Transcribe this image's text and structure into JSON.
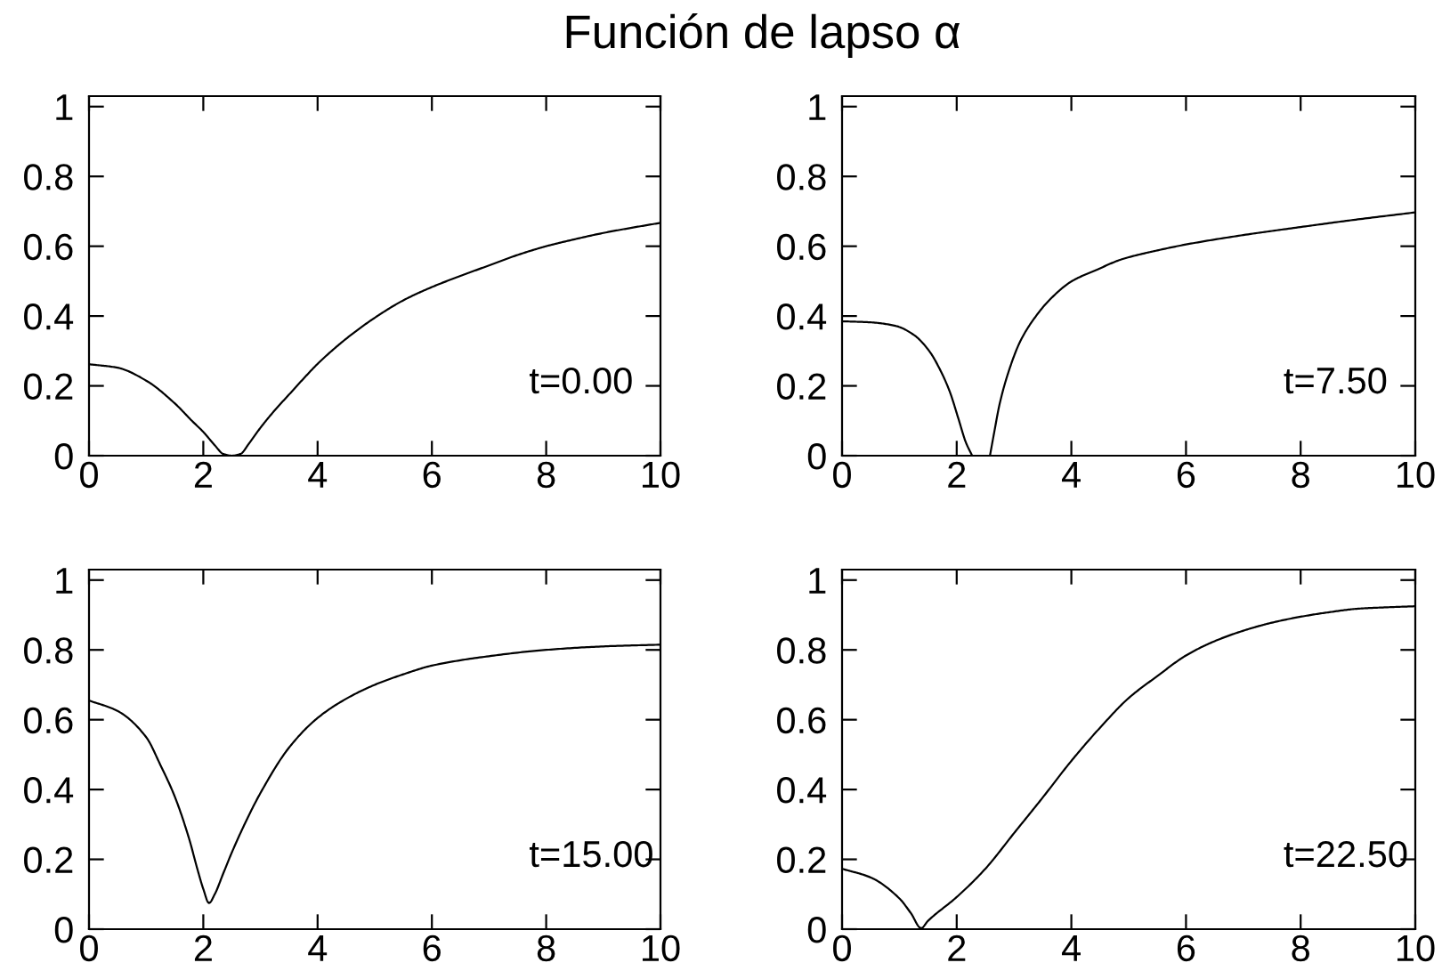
{
  "chart_data": [
    {
      "type": "line",
      "title": "Función de lapso α",
      "color": "#000000",
      "xlim": [
        0,
        10
      ],
      "ylim": [
        0,
        1.03
      ],
      "xticks": [
        0,
        2,
        4,
        6,
        8,
        10
      ],
      "yticks": [
        0,
        0.2,
        0.4,
        0.6,
        0.8,
        1
      ],
      "annotations": [
        "t=0.00"
      ],
      "x": [
        0,
        0.5,
        1,
        1.5,
        1.8,
        2,
        2.2,
        2.35,
        2.5,
        2.65,
        2.8,
        3,
        3.25,
        3.5,
        3.75,
        4,
        4.5,
        5,
        5.5,
        6,
        6.5,
        7,
        7.5,
        8,
        8.5,
        9,
        9.5,
        10
      ],
      "values": [
        0.262,
        0.252,
        0.215,
        0.15,
        0.1,
        0.068,
        0.03,
        0.005,
        0.0,
        0.005,
        0.035,
        0.08,
        0.13,
        0.175,
        0.22,
        0.263,
        0.335,
        0.395,
        0.445,
        0.483,
        0.515,
        0.545,
        0.575,
        0.6,
        0.62,
        0.638,
        0.653,
        0.667
      ]
    },
    {
      "type": "line",
      "color": "#000000",
      "xlim": [
        0,
        10
      ],
      "ylim": [
        0,
        1.03
      ],
      "xticks": [
        0,
        2,
        4,
        6,
        8,
        10
      ],
      "yticks": [
        0,
        0.2,
        0.4,
        0.6,
        0.8,
        1
      ],
      "annotations": [
        "t=7.50"
      ],
      "x": [
        0,
        0.5,
        0.95,
        1.26,
        1.52,
        1.72,
        1.88,
        2.03,
        2.16,
        2.27,
        2.4,
        2.58,
        2.65,
        2.75,
        2.91,
        3.11,
        3.37,
        3.63,
        4.0,
        4.45,
        4.87,
        5.5,
        6,
        7,
        8,
        9,
        10
      ],
      "values": [
        0.385,
        0.382,
        0.371,
        0.345,
        0.3,
        0.243,
        0.183,
        0.106,
        0.038,
        0.0,
        null,
        0.0,
        0.063,
        0.149,
        0.243,
        0.328,
        0.397,
        0.448,
        0.499,
        0.533,
        0.562,
        0.588,
        0.605,
        0.632,
        0.655,
        0.677,
        0.697
      ]
    },
    {
      "type": "line",
      "color": "#000000",
      "xlim": [
        0,
        10
      ],
      "ylim": [
        0,
        1.03
      ],
      "xticks": [
        0,
        2,
        4,
        6,
        8,
        10
      ],
      "yticks": [
        0,
        0.2,
        0.4,
        0.6,
        0.8,
        1
      ],
      "annotations": [
        "t=15.00"
      ],
      "x": [
        0,
        0.5,
        1,
        1.25,
        1.5,
        1.75,
        1.9,
        2,
        2.1,
        2.2,
        2.35,
        2.5,
        2.75,
        3,
        3.5,
        4,
        4.5,
        5,
        5.5,
        6,
        7,
        8,
        9,
        10
      ],
      "values": [
        0.655,
        0.625,
        0.55,
        0.47,
        0.38,
        0.26,
        0.17,
        0.115,
        0.075,
        0.1,
        0.16,
        0.22,
        0.31,
        0.39,
        0.52,
        0.605,
        0.66,
        0.7,
        0.73,
        0.755,
        0.782,
        0.8,
        0.81,
        0.815
      ]
    },
    {
      "type": "line",
      "color": "#000000",
      "xlim": [
        0,
        10
      ],
      "ylim": [
        0,
        1.03
      ],
      "xticks": [
        0,
        2,
        4,
        6,
        8,
        10
      ],
      "yticks": [
        0,
        0.2,
        0.4,
        0.6,
        0.8,
        1
      ],
      "annotations": [
        "t=22.50"
      ],
      "x": [
        0,
        0.5,
        1,
        1.2,
        1.38,
        1.5,
        2,
        2.5,
        3,
        3.5,
        4,
        4.5,
        5,
        5.5,
        6,
        6.5,
        7,
        7.5,
        8,
        8.5,
        9,
        9.5,
        10
      ],
      "values": [
        0.173,
        0.148,
        0.088,
        0.046,
        0.003,
        0.024,
        0.092,
        0.173,
        0.275,
        0.377,
        0.482,
        0.577,
        0.662,
        0.725,
        0.784,
        0.825,
        0.855,
        0.878,
        0.895,
        0.908,
        0.918,
        0.922,
        0.925
      ]
    }
  ]
}
